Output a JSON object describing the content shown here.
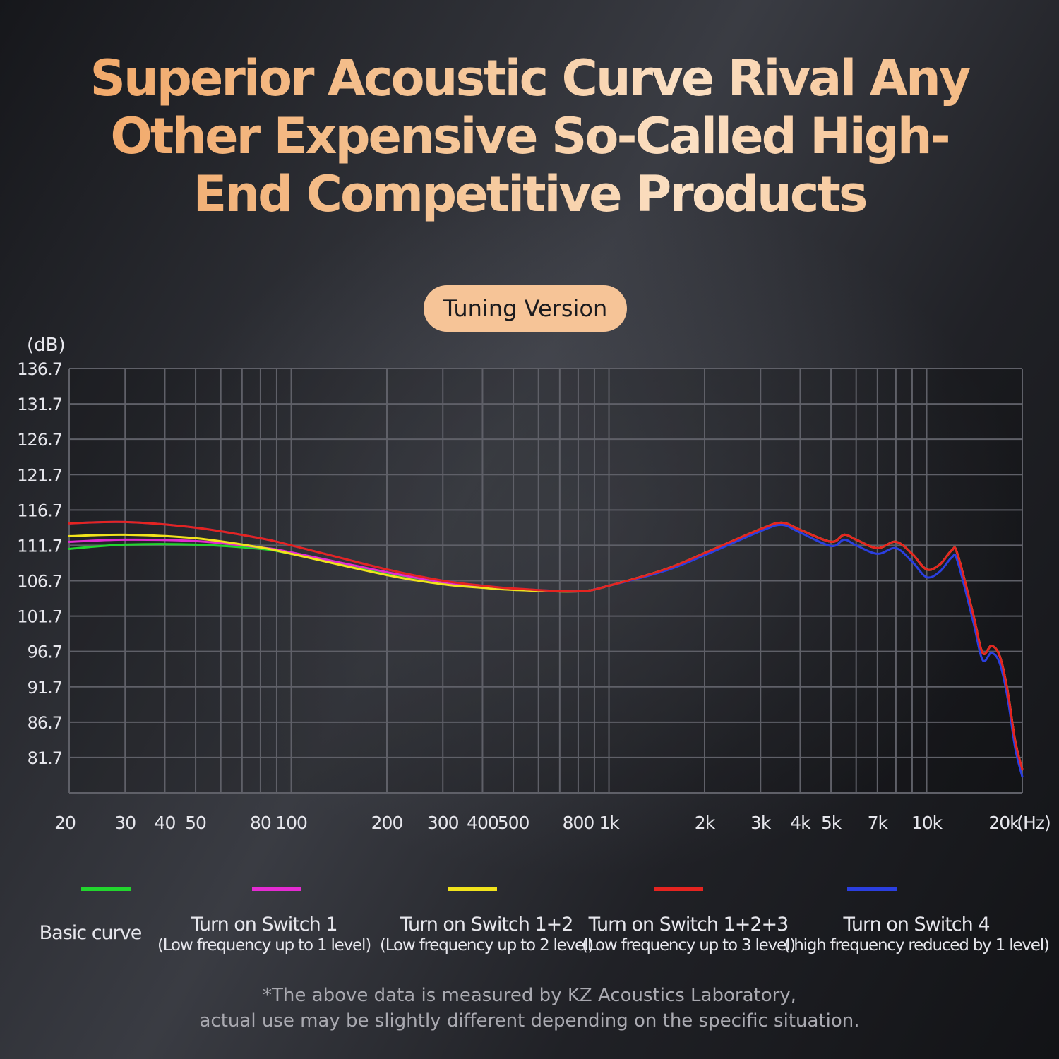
{
  "headline": {
    "line1": "Superior Acoustic Curve Rival Any",
    "line2": "Other Expensive So-Called High-",
    "line3": "End Competitive Products"
  },
  "badge": "Tuning Version",
  "footnote": {
    "line1": "*The above data is measured by KZ Acoustics Laboratory,",
    "line2": "actual use may be slightly different depending on the specific situation."
  },
  "chart_data": {
    "type": "line",
    "x_scale": "log",
    "xlim": [
      20,
      20000
    ],
    "ylim": [
      76.7,
      136.7
    ],
    "ylabel": "(dB)",
    "xlabel": "(Hz)",
    "grid": true,
    "legend_position": "bottom",
    "yticks": [
      {
        "value": 136.7,
        "label": "136.7"
      },
      {
        "value": 131.7,
        "label": "131.7"
      },
      {
        "value": 126.7,
        "label": "126.7"
      },
      {
        "value": 121.7,
        "label": "121.7"
      },
      {
        "value": 116.7,
        "label": "116.7"
      },
      {
        "value": 111.7,
        "label": "111.7"
      },
      {
        "value": 106.7,
        "label": "106.7"
      },
      {
        "value": 101.7,
        "label": "101.7"
      },
      {
        "value": 96.7,
        "label": "96.7"
      },
      {
        "value": 91.7,
        "label": "91.7"
      },
      {
        "value": 86.7,
        "label": "86.7"
      },
      {
        "value": 81.7,
        "label": "81.7"
      }
    ],
    "xticks": [
      {
        "value": 20,
        "label": "20"
      },
      {
        "value": 30,
        "label": "30"
      },
      {
        "value": 40,
        "label": "40"
      },
      {
        "value": 50,
        "label": "50"
      },
      {
        "value": 80,
        "label": "80"
      },
      {
        "value": 100,
        "label": "100"
      },
      {
        "value": 200,
        "label": "200"
      },
      {
        "value": 300,
        "label": "300"
      },
      {
        "value": 400,
        "label": "400"
      },
      {
        "value": 500,
        "label": "500"
      },
      {
        "value": 800,
        "label": "800"
      },
      {
        "value": 1000,
        "label": "1k"
      },
      {
        "value": 2000,
        "label": "2k"
      },
      {
        "value": 3000,
        "label": "3k"
      },
      {
        "value": 4000,
        "label": "4k"
      },
      {
        "value": 5000,
        "label": "5k"
      },
      {
        "value": 7000,
        "label": "7k"
      },
      {
        "value": 10000,
        "label": "10k"
      },
      {
        "value": 20000,
        "label": "20k"
      }
    ],
    "gridx": [
      20,
      30,
      40,
      50,
      80,
      100,
      200,
      300,
      400,
      500,
      800,
      1000,
      2000,
      3000,
      4000,
      5000,
      7000,
      10000,
      20000
    ],
    "series": [
      {
        "name": "Basic curve",
        "sub": "",
        "color": "#22d62e",
        "points": [
          [
            20,
            111.2
          ],
          [
            30,
            111.8
          ],
          [
            50,
            111.8
          ],
          [
            80,
            111.2
          ],
          [
            100,
            110.5
          ],
          [
            200,
            107.8
          ],
          [
            300,
            106.5
          ],
          [
            400,
            105.9
          ],
          [
            500,
            105.5
          ],
          [
            800,
            105.2
          ],
          [
            1000,
            106
          ],
          [
            1500,
            108.3
          ],
          [
            2000,
            110.6
          ],
          [
            3000,
            114
          ],
          [
            3500,
            114.9
          ],
          [
            4000,
            113.9
          ],
          [
            5000,
            112.2
          ],
          [
            5500,
            113.2
          ],
          [
            6000,
            112.5
          ],
          [
            7000,
            111.3
          ],
          [
            8000,
            112.2
          ],
          [
            9000,
            110.5
          ],
          [
            10000,
            108.3
          ],
          [
            11000,
            109
          ],
          [
            12000,
            111
          ],
          [
            12500,
            110.5
          ],
          [
            14000,
            102
          ],
          [
            15000,
            96.5
          ],
          [
            16000,
            97.5
          ],
          [
            17000,
            96
          ],
          [
            18000,
            91
          ],
          [
            19000,
            84
          ],
          [
            20000,
            80
          ]
        ]
      },
      {
        "name": "Turn on Switch 1",
        "sub": "(Low frequency up to 1 level)",
        "color": "#e42bd2",
        "points": [
          [
            20,
            112.2
          ],
          [
            30,
            112.5
          ],
          [
            50,
            112.3
          ],
          [
            80,
            111.4
          ],
          [
            100,
            110.7
          ],
          [
            200,
            107.9
          ],
          [
            300,
            106.5
          ],
          [
            400,
            105.9
          ],
          [
            500,
            105.5
          ],
          [
            800,
            105.2
          ],
          [
            1000,
            106
          ],
          [
            1500,
            108.3
          ],
          [
            2000,
            110.6
          ],
          [
            3000,
            114
          ],
          [
            3500,
            114.9
          ],
          [
            4000,
            113.9
          ],
          [
            5000,
            112.2
          ],
          [
            5500,
            113.2
          ],
          [
            6000,
            112.5
          ],
          [
            7000,
            111.3
          ],
          [
            8000,
            112.2
          ],
          [
            9000,
            110.5
          ],
          [
            10000,
            108.3
          ],
          [
            11000,
            109
          ],
          [
            12000,
            111
          ],
          [
            12500,
            110.5
          ],
          [
            14000,
            102
          ],
          [
            15000,
            96.5
          ],
          [
            16000,
            97.5
          ],
          [
            17000,
            96
          ],
          [
            18000,
            91
          ],
          [
            19000,
            84
          ],
          [
            20000,
            80
          ]
        ]
      },
      {
        "name": "Turn on Switch 1+2",
        "sub": "(Low frequency up to 2 level)",
        "color": "#f1e31c",
        "points": [
          [
            20,
            113
          ],
          [
            30,
            113.2
          ],
          [
            50,
            112.7
          ],
          [
            80,
            111.4
          ],
          [
            100,
            110.5
          ],
          [
            200,
            107.5
          ],
          [
            300,
            106.2
          ],
          [
            400,
            105.7
          ],
          [
            500,
            105.4
          ],
          [
            800,
            105.2
          ],
          [
            1000,
            106
          ],
          [
            1500,
            108.3
          ],
          [
            2000,
            110.6
          ],
          [
            3000,
            114
          ],
          [
            3500,
            114.9
          ],
          [
            4000,
            113.9
          ],
          [
            5000,
            112.2
          ],
          [
            5500,
            113.2
          ],
          [
            6000,
            112.5
          ],
          [
            7000,
            111.3
          ],
          [
            8000,
            112.2
          ],
          [
            9000,
            110.5
          ],
          [
            10000,
            108.3
          ],
          [
            11000,
            109
          ],
          [
            12000,
            111
          ],
          [
            12500,
            110.5
          ],
          [
            14000,
            102
          ],
          [
            15000,
            96.5
          ],
          [
            16000,
            97.5
          ],
          [
            17000,
            96
          ],
          [
            18000,
            91
          ],
          [
            19000,
            84
          ],
          [
            20000,
            80
          ]
        ]
      },
      {
        "name": "Turn on Switch 1+2+3",
        "sub": "(Low frequency up to 3 level)",
        "color": "#e52420",
        "points": [
          [
            20,
            114.8
          ],
          [
            30,
            115
          ],
          [
            50,
            114.2
          ],
          [
            80,
            112.7
          ],
          [
            100,
            111.7
          ],
          [
            200,
            108.3
          ],
          [
            300,
            106.7
          ],
          [
            400,
            106
          ],
          [
            500,
            105.6
          ],
          [
            800,
            105.2
          ],
          [
            1000,
            106
          ],
          [
            1500,
            108.3
          ],
          [
            2000,
            110.6
          ],
          [
            3000,
            114
          ],
          [
            3500,
            114.9
          ],
          [
            4000,
            113.9
          ],
          [
            5000,
            112.2
          ],
          [
            5500,
            113.2
          ],
          [
            6000,
            112.5
          ],
          [
            7000,
            111.3
          ],
          [
            8000,
            112.2
          ],
          [
            9000,
            110.5
          ],
          [
            10000,
            108.3
          ],
          [
            11000,
            109
          ],
          [
            12000,
            111
          ],
          [
            12500,
            110.5
          ],
          [
            14000,
            102
          ],
          [
            15000,
            96.5
          ],
          [
            16000,
            97.5
          ],
          [
            17000,
            96
          ],
          [
            18000,
            91
          ],
          [
            19000,
            84
          ],
          [
            20000,
            80
          ]
        ]
      },
      {
        "name": "Turn on Switch 4",
        "sub": "( high frequency reduced by 1 level)",
        "color": "#2b3fe0",
        "points": [
          [
            20,
            114.8
          ],
          [
            30,
            115
          ],
          [
            50,
            114.2
          ],
          [
            80,
            112.7
          ],
          [
            100,
            111.7
          ],
          [
            200,
            108.3
          ],
          [
            300,
            106.7
          ],
          [
            400,
            106
          ],
          [
            500,
            105.6
          ],
          [
            800,
            105.2
          ],
          [
            1000,
            106
          ],
          [
            1500,
            108.1
          ],
          [
            2000,
            110.3
          ],
          [
            3000,
            113.7
          ],
          [
            3500,
            114.6
          ],
          [
            4000,
            113.5
          ],
          [
            5000,
            111.6
          ],
          [
            5500,
            112.5
          ],
          [
            6000,
            111.7
          ],
          [
            7000,
            110.5
          ],
          [
            8000,
            111.3
          ],
          [
            9000,
            109.4
          ],
          [
            10000,
            107.2
          ],
          [
            11000,
            108
          ],
          [
            12000,
            110
          ],
          [
            12500,
            109.5
          ],
          [
            14000,
            101
          ],
          [
            15000,
            95.5
          ],
          [
            16000,
            96.5
          ],
          [
            17000,
            95
          ],
          [
            18000,
            90
          ],
          [
            19000,
            83
          ],
          [
            20000,
            79
          ]
        ]
      }
    ]
  }
}
